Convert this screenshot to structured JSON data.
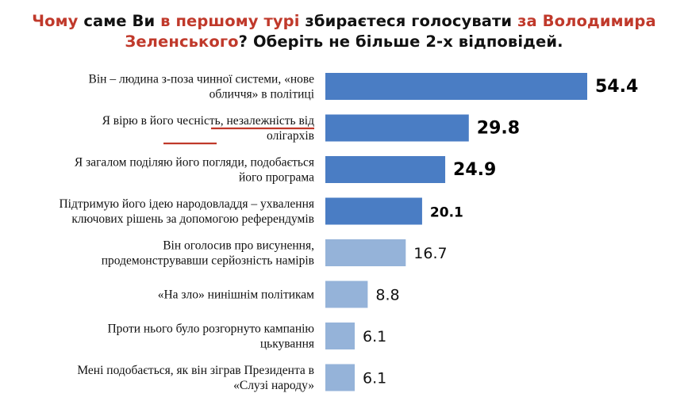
{
  "title": {
    "parts": [
      {
        "text": "Чому",
        "color": "#c0392b"
      },
      {
        "text": " саме Ви ",
        "color": "#111111"
      },
      {
        "text": "в першому турі",
        "color": "#c0392b"
      },
      {
        "text": " збираєтеся голосувати ",
        "color": "#111111"
      },
      {
        "text": "за Володимира",
        "color": "#c0392b"
      }
    ],
    "line2_parts": [
      {
        "text": "Зеленського",
        "color": "#c0392b"
      },
      {
        "text": "? Оберіть не більше 2-х відповідей.",
        "color": "#111111"
      }
    ]
  },
  "chart_data": {
    "type": "bar",
    "orientation": "horizontal",
    "categories": [
      [
        "Він – людина з-поза чинної системи, «нове",
        "обличчя» в політиці"
      ],
      [
        "Я вірю в його чесність, незалежність від",
        "олігархів"
      ],
      [
        "Я загалом поділяю його погляди, подобається",
        "його програма"
      ],
      [
        "Підтримую його ідею народовладдя – ухвалення",
        "ключових рішень за допомогою референдумів"
      ],
      [
        "Він оголосив про висунення,",
        "продемонструвавши серйозність намірів"
      ],
      [
        "«На зло» нинішнім політикам"
      ],
      [
        "Проти нього було розгорнуто кампанію",
        "цькування"
      ],
      [
        "Мені подобається, як він зіграв Президента в",
        "«Слузі народу»"
      ]
    ],
    "values": [
      54.4,
      29.8,
      24.9,
      20.1,
      16.7,
      8.8,
      6.1,
      6.1
    ],
    "value_labels": [
      "54.4",
      "29.8",
      "24.9",
      "20.1",
      "16.7",
      "8.8",
      "6.1",
      "6.1"
    ],
    "colors": {
      "dark": "#4a7dc4",
      "light": "#95b3d9",
      "underline": "#c0392b"
    },
    "dark_count": 4,
    "xlim": [
      0,
      60
    ],
    "grid": false,
    "legend": "none"
  }
}
